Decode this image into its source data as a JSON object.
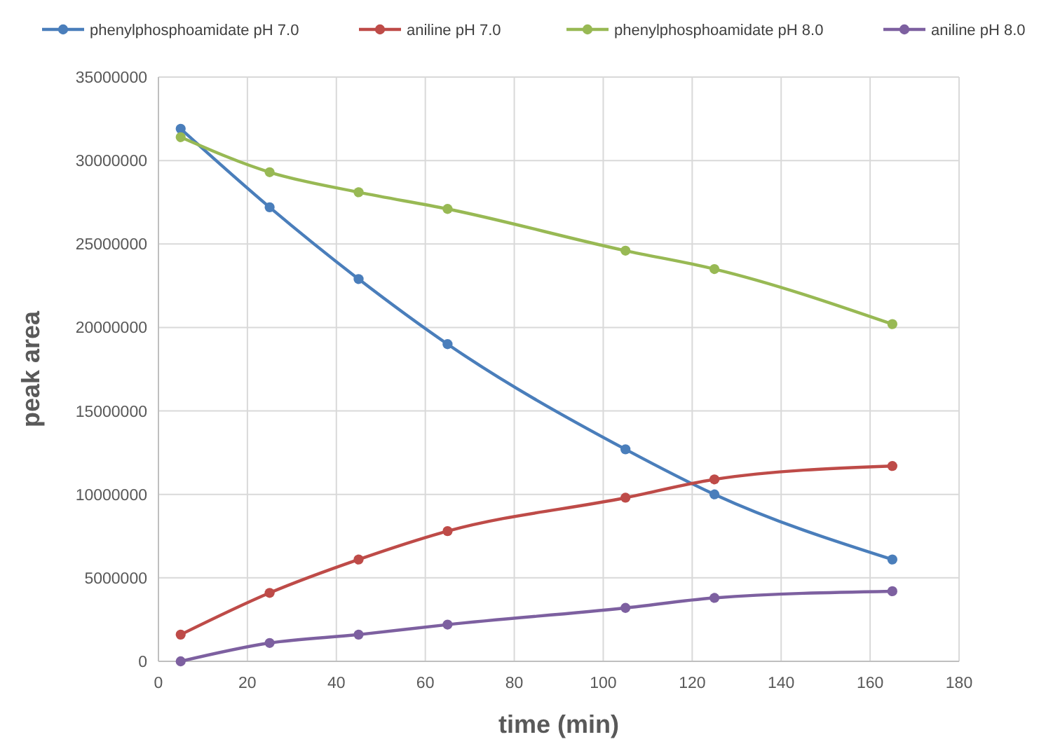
{
  "chart_data": {
    "type": "line",
    "xlabel": "time (min)",
    "ylabel": "peak area",
    "x": [
      5,
      25,
      45,
      65,
      105,
      125,
      165
    ],
    "series": [
      {
        "name": "phenylphosphoamidate pH 7.0",
        "color": "#4a7ebb",
        "values": [
          31900000,
          27200000,
          22900000,
          19000000,
          12700000,
          10000000,
          6100000
        ]
      },
      {
        "name": "aniline pH 7.0",
        "color": "#be4b48",
        "values": [
          1600000,
          4100000,
          6100000,
          7800000,
          9800000,
          10900000,
          11700000
        ]
      },
      {
        "name": "phenylphosphoamidate pH 8.0",
        "color": "#98b954",
        "values": [
          31400000,
          29300000,
          28100000,
          27100000,
          24600000,
          23500000,
          20200000
        ]
      },
      {
        "name": "aniline pH 8.0",
        "color": "#7d60a0",
        "values": [
          0,
          1100000,
          1600000,
          2200000,
          3200000,
          3800000,
          4200000
        ]
      }
    ],
    "xlim": [
      0,
      180
    ],
    "xticks": [
      0,
      20,
      40,
      60,
      80,
      100,
      120,
      140,
      160,
      180
    ],
    "ylim": [
      0,
      35000000
    ],
    "yticks": [
      0,
      5000000,
      10000000,
      15000000,
      20000000,
      25000000,
      30000000,
      35000000
    ],
    "grid": true,
    "legend": "top",
    "marker": "circle",
    "line_style": "solid"
  }
}
